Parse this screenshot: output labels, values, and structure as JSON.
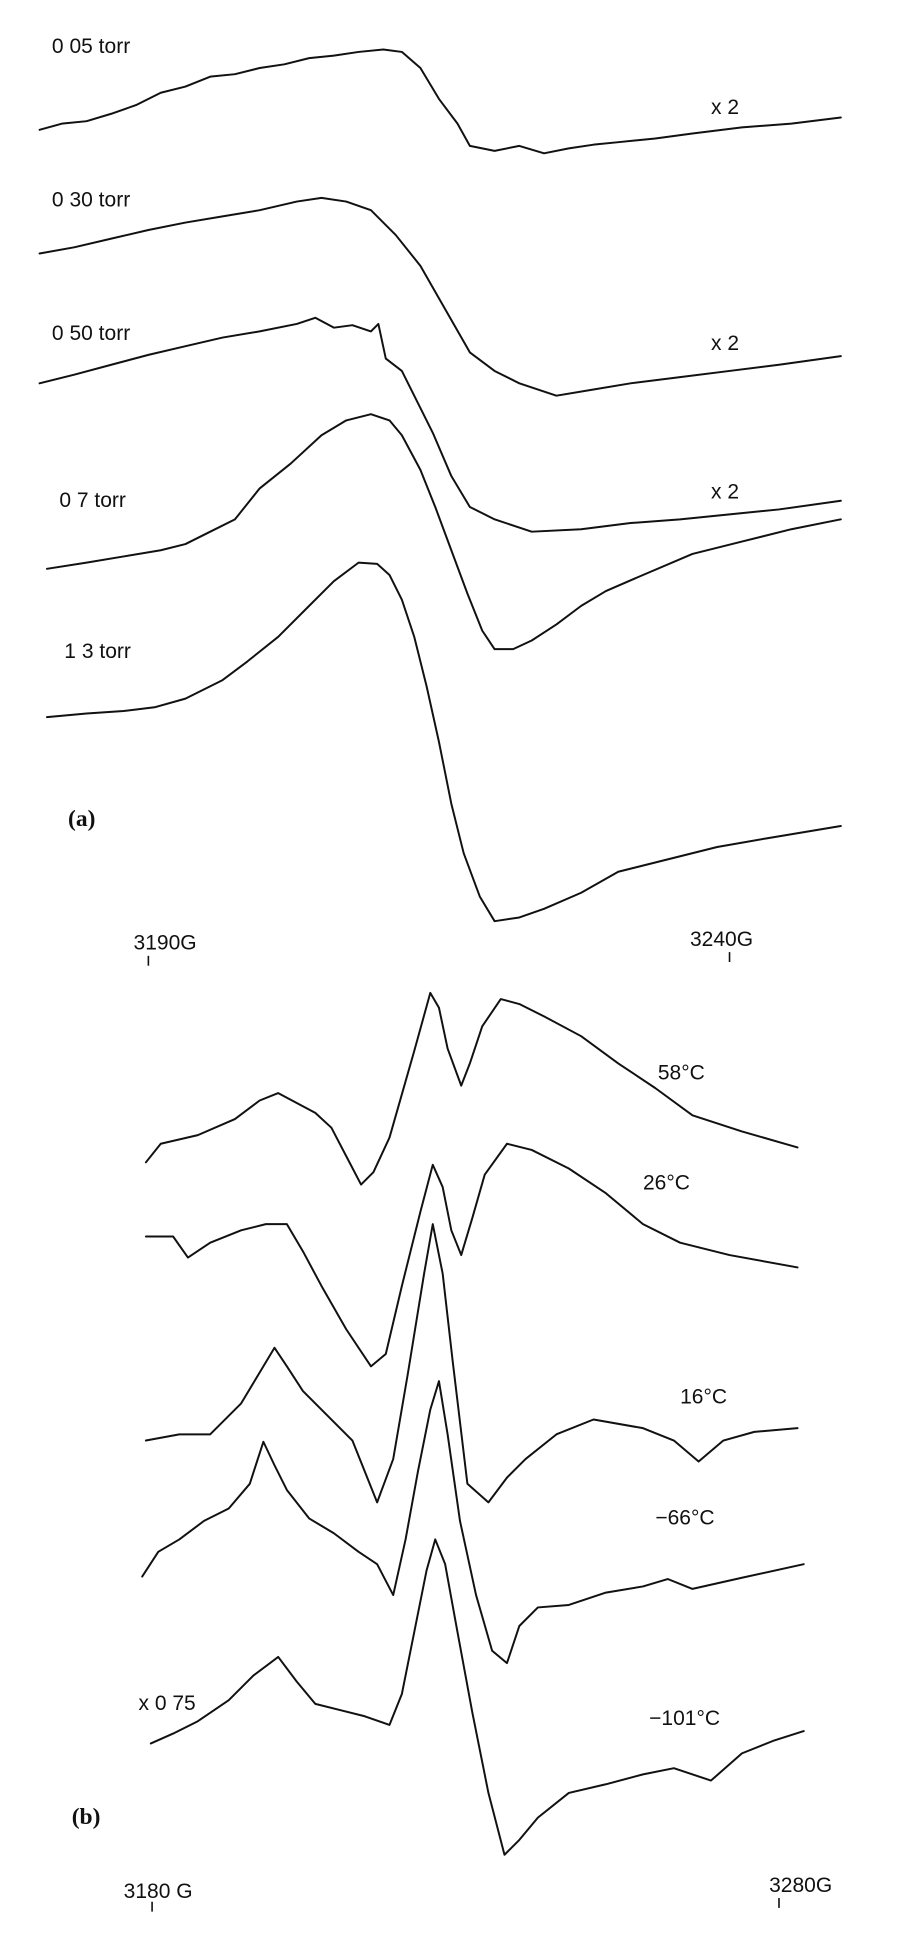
{
  "panel_a": {
    "traces": [
      "0 05 torr",
      "0 30 torr",
      "0 50 torr",
      "0 7 torr",
      "1 3 torr"
    ],
    "gain_labels": [
      "x 2",
      "x 2",
      "x 2"
    ],
    "label": "(a)",
    "axis_labels": [
      "3190G",
      "3240G"
    ]
  },
  "panel_b": {
    "traces": [
      "58°C",
      "26°C",
      "16°C",
      "−66°C",
      "−101°C"
    ],
    "gain_label": "x 0 75",
    "label": "(b)",
    "axis_labels": [
      "3180 G",
      "3280G"
    ]
  }
}
